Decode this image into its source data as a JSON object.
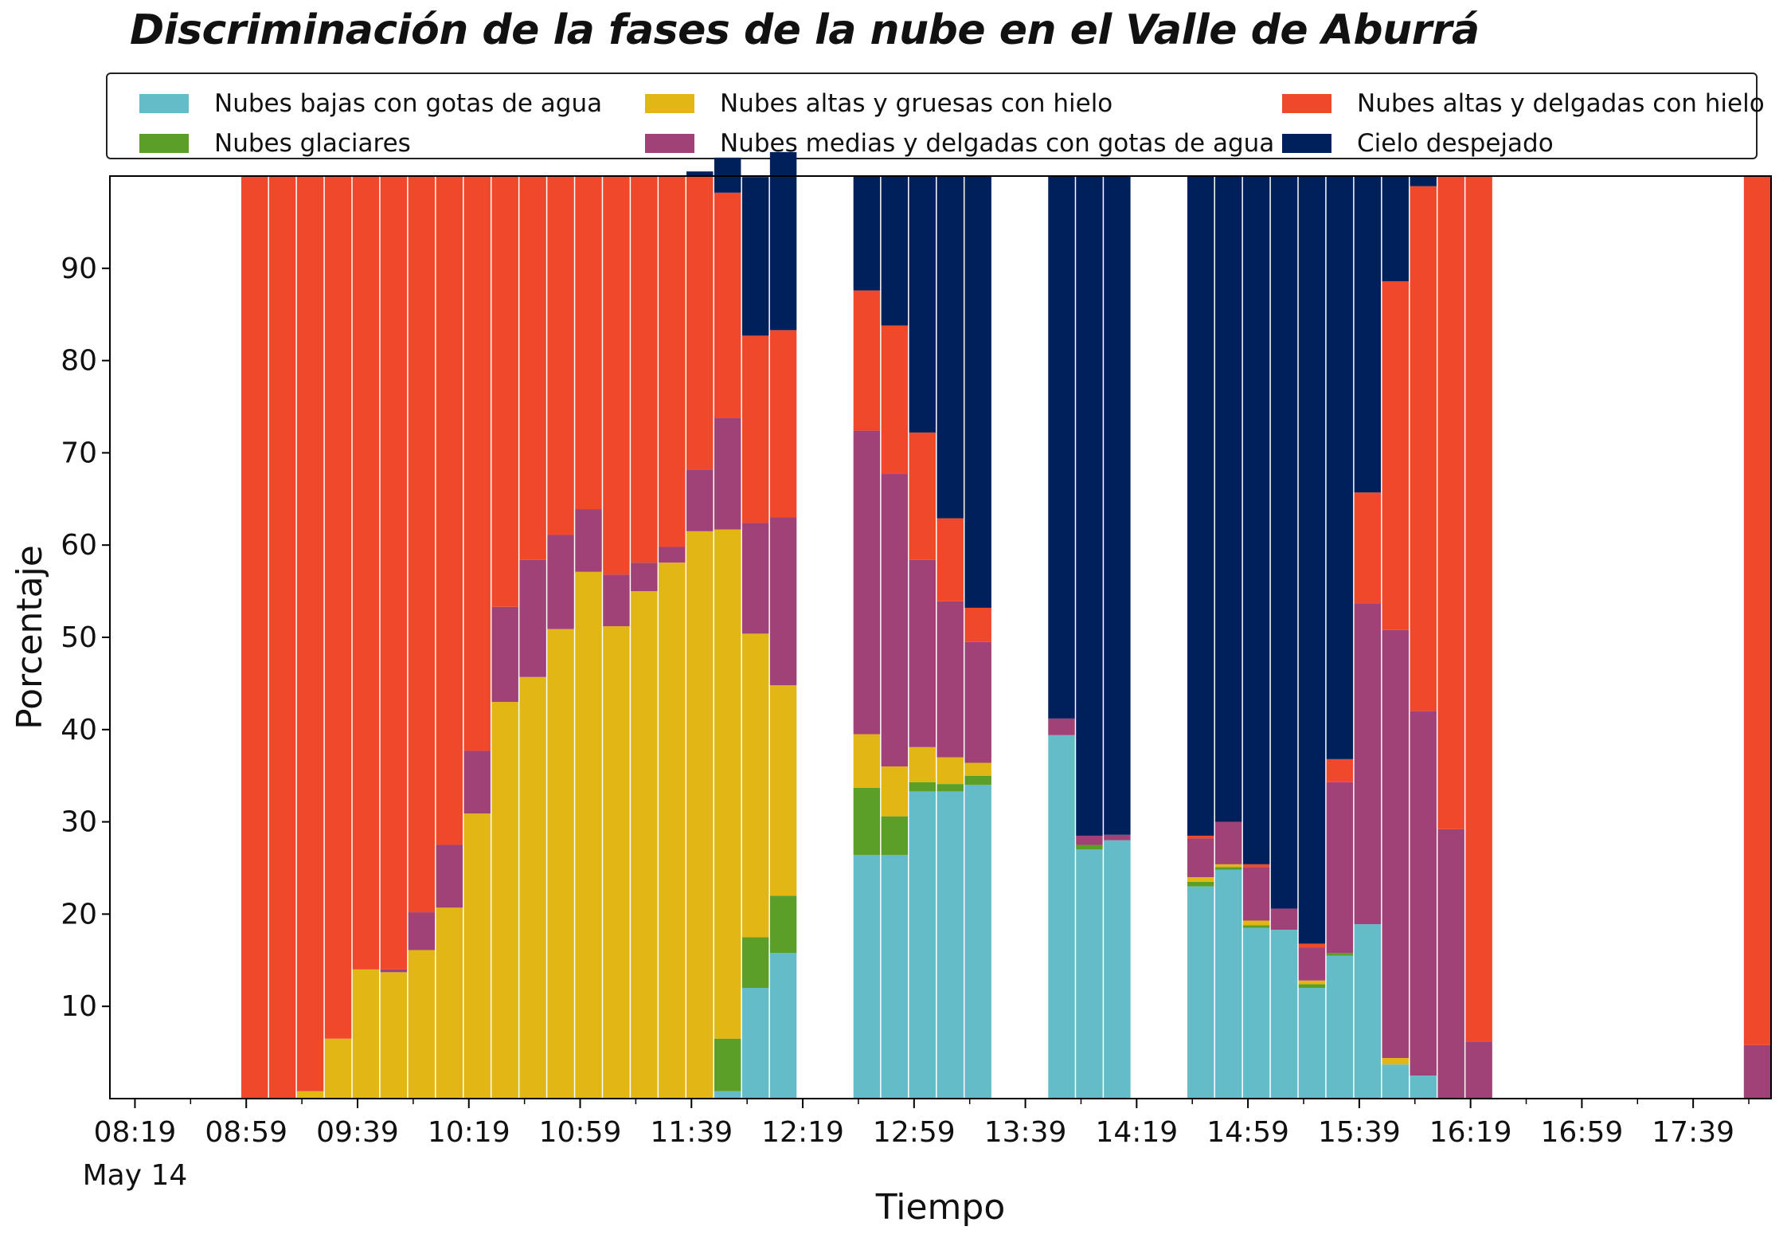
{
  "chart_data": {
    "type": "bar",
    "stacked": true,
    "title": "Discriminación de la fases de la nube en el Valle de Aburrá",
    "xlabel": "Tiempo",
    "ylabel": "Porcentaje",
    "ylim": [
      0,
      100
    ],
    "yticks": [
      10,
      20,
      30,
      40,
      50,
      60,
      70,
      80,
      90
    ],
    "xlim_minutes": [
      490,
      1087
    ],
    "xticks": [
      {
        "label": "08:19",
        "minute": 499
      },
      {
        "label": "08:59",
        "minute": 539
      },
      {
        "label": "09:39",
        "minute": 579
      },
      {
        "label": "10:19",
        "minute": 619
      },
      {
        "label": "10:59",
        "minute": 659
      },
      {
        "label": "11:39",
        "minute": 699
      },
      {
        "label": "12:19",
        "minute": 739
      },
      {
        "label": "12:59",
        "minute": 779
      },
      {
        "label": "13:39",
        "minute": 819
      },
      {
        "label": "14:19",
        "minute": 859
      },
      {
        "label": "14:59",
        "minute": 899
      },
      {
        "label": "15:39",
        "minute": 939
      },
      {
        "label": "16:19",
        "minute": 979
      },
      {
        "label": "16:59",
        "minute": 1019
      },
      {
        "label": "17:39",
        "minute": 1059
      }
    ],
    "date_label": "May 14",
    "legend_position": "top",
    "grid": false,
    "bar_width_minutes": 9,
    "x_minutes": [
      542,
      552,
      562,
      572,
      582,
      592,
      602,
      612,
      622,
      632,
      642,
      652,
      662,
      672,
      682,
      692,
      702,
      712,
      722,
      732,
      762,
      772,
      782,
      792,
      802,
      832,
      842,
      852,
      882,
      892,
      902,
      912,
      922,
      932,
      942,
      952,
      962,
      972,
      982,
      1012,
      1082
    ],
    "series": [
      {
        "name": "Nubes bajas con gotas de agua",
        "color": "#65bcc9",
        "values": [
          0,
          0,
          0,
          0,
          0,
          0,
          0,
          0,
          0,
          0,
          0,
          0,
          0,
          0,
          0,
          0,
          0,
          0.8,
          12,
          15.8,
          26.4,
          26.4,
          33.3,
          33.3,
          34,
          39.4,
          27,
          28,
          23,
          24.8,
          18.5,
          18.3,
          12,
          15.5,
          18.9,
          3.7,
          2.5,
          0,
          0,
          0,
          0
        ]
      },
      {
        "name": "Nubes glaciares",
        "color": "#5b9e28",
        "values": [
          0,
          0,
          0,
          0,
          0,
          0,
          0,
          0,
          0,
          0,
          0,
          0,
          0,
          0,
          0,
          0,
          0,
          5.7,
          5.5,
          6.2,
          7.3,
          4.2,
          1,
          0.8,
          1,
          0,
          0.5,
          0,
          0.5,
          0.3,
          0.3,
          0,
          0.4,
          0.3,
          0,
          0,
          0,
          0,
          0,
          0,
          0
        ]
      },
      {
        "name": "Nubes altas y gruesas con hielo",
        "color": "#e2b614",
        "values": [
          0,
          0,
          0.8,
          6.5,
          14,
          13.7,
          16.1,
          20.7,
          30.9,
          43,
          45.7,
          50.9,
          57.1,
          51.2,
          55,
          58.1,
          61.5,
          55.2,
          32.9,
          22.8,
          5.8,
          5.4,
          3.8,
          2.9,
          1.4,
          0,
          0,
          0,
          0.5,
          0.3,
          0.5,
          0,
          0.4,
          0,
          0,
          0.7,
          0,
          0,
          0,
          0,
          0
        ]
      },
      {
        "name": "Nubes medias y delgadas con gotas de agua",
        "color": "#a04178",
        "values": [
          0,
          0,
          0,
          0,
          0,
          0.3,
          4.1,
          6.8,
          6.8,
          10.3,
          12.7,
          10.2,
          6.8,
          5.6,
          3.1,
          1.7,
          6.7,
          12.1,
          12,
          18.2,
          32.9,
          31.7,
          20.3,
          16.9,
          13.1,
          1.8,
          1,
          0.6,
          4.2,
          4.6,
          5.8,
          2.3,
          3.6,
          18.5,
          34.8,
          46.4,
          39.5,
          29.2,
          6.2,
          0,
          5.8
        ]
      },
      {
        "name": "Nubes altas y delgadas con hielo",
        "color": "#ef482a",
        "values": [
          100,
          100,
          99.2,
          93.5,
          86,
          86,
          79.8,
          72.5,
          62.3,
          46.7,
          41.6,
          38.9,
          36.1,
          43.2,
          41.9,
          40.2,
          31.8,
          24.4,
          20.3,
          20.3,
          15.2,
          16.1,
          13.8,
          9,
          3.7,
          0,
          0,
          0,
          0.3,
          0,
          0.3,
          0,
          0.4,
          2.5,
          12,
          37.8,
          56.9,
          70.8,
          93.8,
          0,
          94.2
        ]
      },
      {
        "name": "Cielo despejado",
        "color": "#00205c",
        "values": [
          0,
          0,
          0,
          0,
          0,
          0,
          0,
          0,
          0,
          0,
          0,
          0,
          0,
          0,
          0,
          0,
          0.5,
          3.8,
          17.2,
          19.3,
          12.4,
          16.2,
          27.8,
          37.1,
          46.8,
          58.8,
          71.5,
          71.4,
          71.5,
          70,
          74.6,
          79.4,
          83.2,
          63.2,
          34.3,
          11.4,
          1.1,
          0,
          0,
          0,
          0
        ]
      }
    ]
  }
}
